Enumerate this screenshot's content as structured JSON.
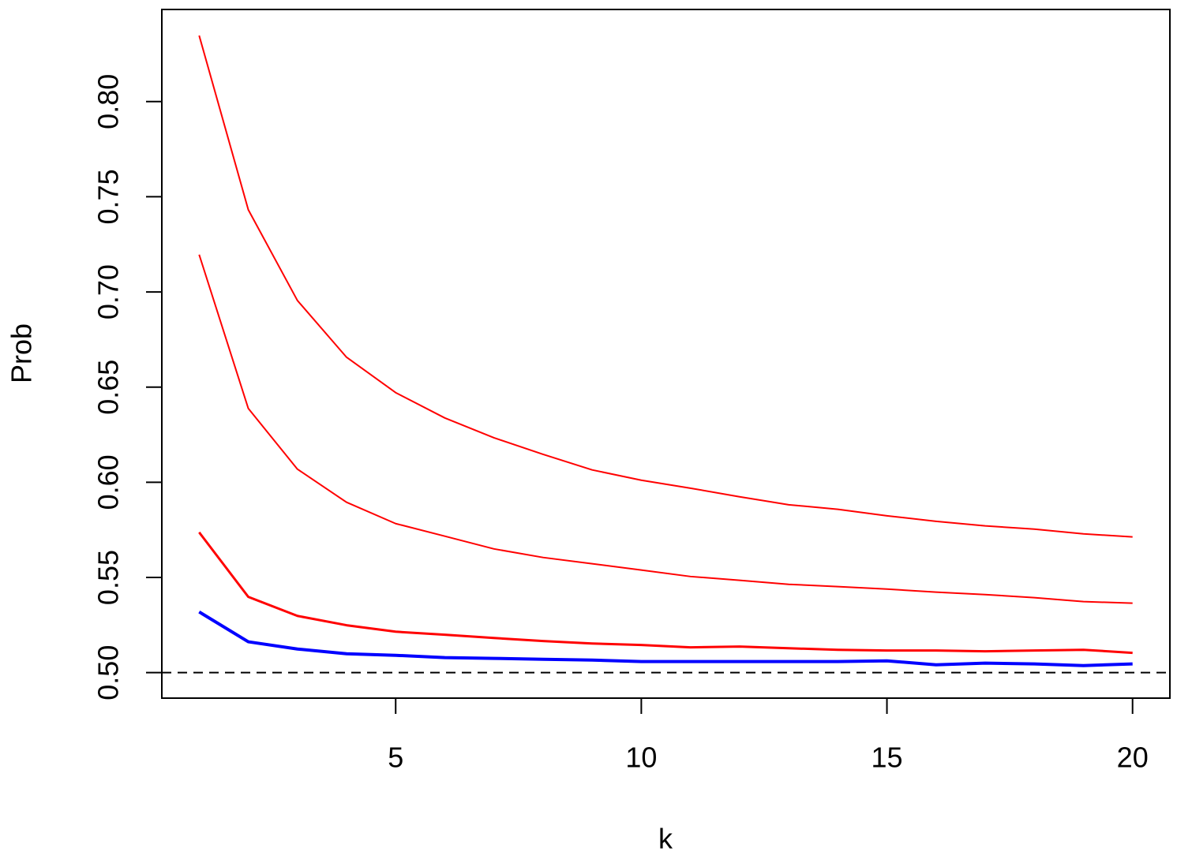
{
  "chart_data": {
    "type": "line",
    "x_label": "k",
    "y_label": "Prob",
    "x": [
      1,
      2,
      3,
      4,
      5,
      6,
      7,
      8,
      9,
      10,
      11,
      12,
      13,
      14,
      15,
      16,
      17,
      18,
      19,
      20
    ],
    "series": [
      {
        "color": "#ff0000",
        "width": 2,
        "values": [
          0.8347,
          0.7432,
          0.6955,
          0.6657,
          0.6471,
          0.6338,
          0.6234,
          0.6147,
          0.6065,
          0.6011,
          0.5969,
          0.5924,
          0.5882,
          0.5858,
          0.5824,
          0.5795,
          0.5771,
          0.5754,
          0.5729,
          0.5713
        ]
      },
      {
        "color": "#ff0000",
        "width": 2,
        "values": [
          0.7196,
          0.6388,
          0.6069,
          0.5895,
          0.5783,
          0.5717,
          0.565,
          0.5605,
          0.5572,
          0.5539,
          0.5505,
          0.5485,
          0.5464,
          0.5452,
          0.5439,
          0.5423,
          0.541,
          0.5394,
          0.5373,
          0.5365
        ]
      },
      {
        "color": "#ff0000",
        "width": 3,
        "values": [
          0.5737,
          0.5398,
          0.5298,
          0.5249,
          0.5215,
          0.5199,
          0.5182,
          0.5166,
          0.5153,
          0.5145,
          0.5133,
          0.5137,
          0.5128,
          0.512,
          0.5116,
          0.5116,
          0.5112,
          0.5116,
          0.512,
          0.5104
        ]
      },
      {
        "color": "#0000ff",
        "width": 4,
        "values": [
          0.5319,
          0.5162,
          0.5124,
          0.5099,
          0.5091,
          0.5079,
          0.5075,
          0.507,
          0.5066,
          0.5058,
          0.5058,
          0.5058,
          0.5058,
          0.5058,
          0.5062,
          0.5041,
          0.505,
          0.5046,
          0.5037,
          0.5046
        ]
      }
    ],
    "reference_line": 0.5,
    "xlim": [
      0.24,
      20.76
    ],
    "ylim": [
      0.4866,
      0.8484
    ],
    "xticks": [
      5,
      10,
      15,
      20
    ],
    "yticks": [
      {
        "value": 0.5,
        "label": "0.50"
      },
      {
        "value": 0.55,
        "label": "0.55"
      },
      {
        "value": 0.6,
        "label": "0.60"
      },
      {
        "value": 0.65,
        "label": "0.65"
      },
      {
        "value": 0.7,
        "label": "0.70"
      },
      {
        "value": 0.75,
        "label": "0.75"
      },
      {
        "value": 0.8,
        "label": "0.80"
      }
    ]
  }
}
